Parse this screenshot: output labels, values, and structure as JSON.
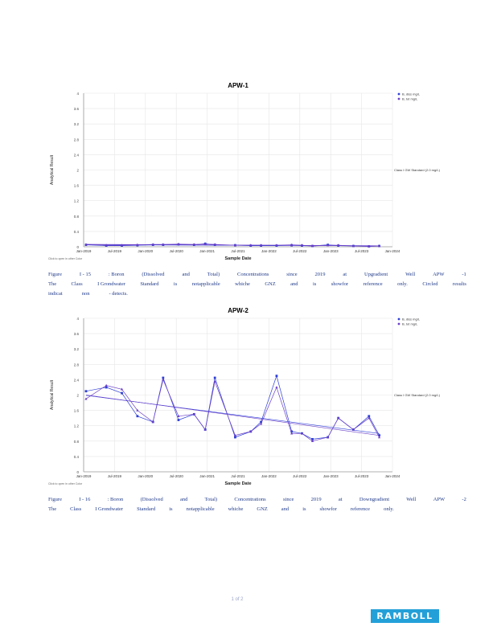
{
  "chart_data": [
    {
      "type": "line",
      "title": "APW-1",
      "xlabel": "Sample Date",
      "ylabel": "Analytical Result",
      "x_tick_labels": [
        "Jan-2019",
        "Jul-2019",
        "Jan-2020",
        "Jul-2020",
        "Jan-2021",
        "Jul-2021",
        "Jan-2022",
        "Jul-2022",
        "Jan-2023",
        "Jul-2023",
        "Jan-2024"
      ],
      "x_range": [
        "2019-01-01",
        "2024-01-01"
      ],
      "ylim": [
        0,
        4
      ],
      "y_tick_labels": [
        "0",
        "0.4",
        "0.8",
        "1.2",
        "1.6",
        "2",
        "2.4",
        "2.8",
        "3.2",
        "3.6",
        "4"
      ],
      "grid": true,
      "legend_position": "top-right",
      "reference_line": {
        "label": "Class I GW Standard (2.0 mg/L)",
        "value": 2
      },
      "series": [
        {
          "name": "B, diss mg/L",
          "color": "#2f3fd6",
          "x": [
            "2019-01-15",
            "2019-05-15",
            "2019-08-15",
            "2019-11-15",
            "2020-02-15",
            "2020-04-15",
            "2020-07-15",
            "2020-10-15",
            "2020-12-20",
            "2021-02-15",
            "2021-06-15",
            "2021-09-15",
            "2021-11-15",
            "2022-02-15",
            "2022-05-15",
            "2022-07-15",
            "2022-09-15",
            "2022-12-15",
            "2023-02-15",
            "2023-05-15",
            "2023-08-15",
            "2023-10-15"
          ],
          "y": [
            0.05,
            0.03,
            0.03,
            0.04,
            0.05,
            0.05,
            0.06,
            0.05,
            0.08,
            0.05,
            0.04,
            0.03,
            0.03,
            0.03,
            0.04,
            0.03,
            0.02,
            0.05,
            0.03,
            0.02,
            0.01,
            0.02
          ]
        },
        {
          "name": "B, tot mg/L",
          "color": "#6a3fc9",
          "x": [
            "2019-01-15",
            "2019-05-15",
            "2019-08-15",
            "2019-11-15",
            "2020-02-15",
            "2020-04-15",
            "2020-07-15",
            "2020-10-15",
            "2020-12-20",
            "2021-02-15",
            "2021-06-15",
            "2021-09-15",
            "2021-11-15",
            "2022-02-15",
            "2022-05-15",
            "2022-07-15",
            "2022-09-15",
            "2022-12-15",
            "2023-02-15",
            "2023-05-15",
            "2023-08-15",
            "2023-10-15"
          ],
          "y": [
            0.06,
            0.04,
            0.04,
            0.05,
            0.06,
            0.06,
            0.07,
            0.06,
            0.07,
            0.06,
            0.04,
            0.04,
            0.04,
            0.04,
            0.05,
            0.04,
            0.02,
            0.04,
            0.04,
            0.02,
            0.01,
            0.02
          ]
        }
      ],
      "footnote": "Click to open in other Color"
    },
    {
      "type": "line",
      "title": "APW-2",
      "xlabel": "Sample Date",
      "ylabel": "Analytical Result",
      "x_tick_labels": [
        "Jan-2019",
        "Jul-2019",
        "Jan-2020",
        "Jul-2020",
        "Jan-2021",
        "Jul-2021",
        "Jan-2022",
        "Jul-2022",
        "Jan-2023",
        "Jul-2023",
        "Jan-2024"
      ],
      "x_range": [
        "2019-01-01",
        "2024-01-01"
      ],
      "ylim": [
        0,
        4
      ],
      "y_tick_labels": [
        "0",
        "0.4",
        "0.8",
        "1.2",
        "1.6",
        "2",
        "2.4",
        "2.8",
        "3.2",
        "3.6",
        "4"
      ],
      "grid": true,
      "legend_position": "top-right",
      "reference_line": {
        "label": "Class I GW Standard (2.0 mg/L)",
        "value": 2
      },
      "series": [
        {
          "name": "B, diss mg/L",
          "color": "#2f3fd6",
          "x": [
            "2019-01-15",
            "2019-05-15",
            "2019-08-15",
            "2019-11-15",
            "2020-02-15",
            "2020-04-15",
            "2020-07-15",
            "2020-10-15",
            "2020-12-20",
            "2021-02-15",
            "2021-06-15",
            "2021-09-15",
            "2021-11-15",
            "2022-02-15",
            "2022-05-15",
            "2022-07-15",
            "2022-09-15",
            "2022-12-15",
            "2023-02-15",
            "2023-05-15",
            "2023-08-15",
            "2023-10-15"
          ],
          "y": [
            2.1,
            2.2,
            2.05,
            1.45,
            1.3,
            2.45,
            1.35,
            1.5,
            1.1,
            2.45,
            0.9,
            1.05,
            1.3,
            2.5,
            1.05,
            1.0,
            0.85,
            0.9,
            1.4,
            1.1,
            1.45,
            0.95
          ]
        },
        {
          "name": "B, tot mg/L",
          "color": "#6a3fc9",
          "x": [
            "2019-01-15",
            "2019-05-15",
            "2019-08-15",
            "2019-11-15",
            "2020-02-15",
            "2020-04-15",
            "2020-07-15",
            "2020-10-15",
            "2020-12-20",
            "2021-02-15",
            "2021-06-15",
            "2021-09-15",
            "2021-11-15",
            "2022-02-15",
            "2022-05-15",
            "2022-07-15",
            "2022-09-15",
            "2022-12-15",
            "2023-02-15",
            "2023-05-15",
            "2023-08-15",
            "2023-10-15"
          ],
          "y": [
            1.9,
            2.25,
            2.15,
            1.6,
            1.3,
            2.4,
            1.45,
            1.5,
            1.1,
            2.35,
            0.95,
            1.05,
            1.25,
            2.2,
            1.0,
            1.0,
            0.8,
            0.9,
            1.4,
            1.1,
            1.4,
            0.9
          ]
        }
      ],
      "footnote": "Click to open in other Color"
    }
  ],
  "captions": [
    {
      "line1": [
        "Figure",
        "I - 15",
        ":  Boron",
        "(Dissolved",
        "and",
        "Total)",
        "Concentrations",
        "since",
        "2019",
        "at",
        "Upgradient",
        "Well",
        "APW",
        "-1"
      ],
      "line2": [
        "The",
        "Class",
        "I  Grondwater",
        "Standard",
        "is",
        "notapplicable",
        "whiche",
        "GNZ",
        "and",
        "is",
        "showfor",
        "reference",
        "only.",
        "Circled",
        "results"
      ],
      "line3": [
        "indicat",
        "non",
        "- detects."
      ]
    },
    {
      "line1": [
        "Figure",
        "I - 16",
        ":  Boron",
        "(Dissolved",
        "and",
        "Total)",
        "Concentrations",
        "since",
        "2019",
        "at",
        "Downgradient",
        "Well",
        "APW",
        "-2"
      ],
      "line2": [
        "The",
        "Class",
        "I  Grondwater",
        "Standard",
        "is",
        "notapplicable",
        "whiche",
        "GNZ",
        "and",
        "is",
        "showfor",
        "reference",
        "only."
      ]
    }
  ],
  "page_number": "1  of  2",
  "logo_text": "RAMBOLL"
}
